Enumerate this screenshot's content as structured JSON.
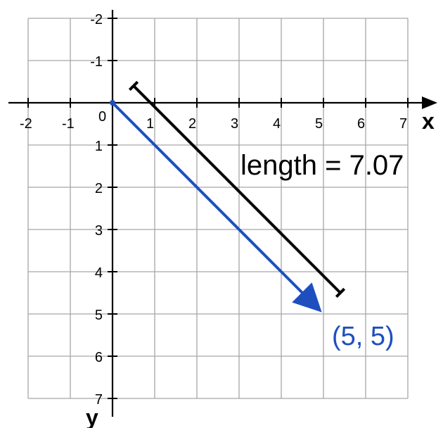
{
  "axes": {
    "x_title": "x",
    "y_title": "y",
    "x_range": [
      -2,
      7
    ],
    "y_range": [
      -2,
      7
    ],
    "y_axis_downward": true,
    "x_tick_values": [
      -2,
      -1,
      1,
      2,
      3,
      4,
      5,
      6,
      7
    ],
    "y_tick_values": [
      -2,
      -1,
      1,
      2,
      3,
      4,
      5,
      6,
      7
    ],
    "origin_label": "0",
    "x_tick_labels": [
      "-2",
      "-1",
      "1",
      "2",
      "3",
      "4",
      "5",
      "6",
      "7"
    ],
    "y_tick_labels": [
      "-2",
      "-1",
      "1",
      "2",
      "3",
      "4",
      "5",
      "6",
      "7"
    ],
    "grid": true
  },
  "vector": {
    "from": [
      0,
      0
    ],
    "to": [
      5,
      5
    ],
    "color": "#1f4fbf",
    "endpoint_label": "(5, 5)"
  },
  "length_bar": {
    "from": [
      0.5,
      -0.4
    ],
    "to": [
      5.4,
      4.5
    ],
    "color": "#000000",
    "label": "length = 7.07"
  },
  "colors": {
    "grid": "#a6a6a6",
    "axis": "#000000",
    "vector": "#1f4fbf"
  }
}
